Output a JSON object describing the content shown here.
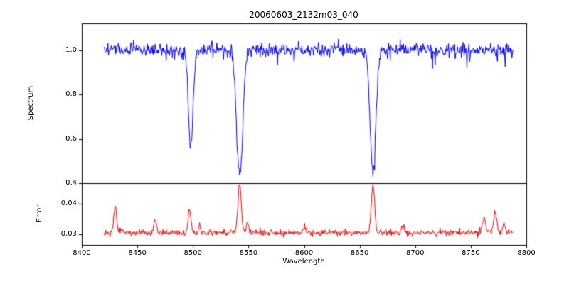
{
  "figure": {
    "title": "20060603_2132m03_040",
    "xlabel": "Wavelength",
    "background": "#ffffff"
  },
  "chart_data": [
    {
      "type": "line",
      "panel": "spectrum",
      "title": "20060603_2132m03_040",
      "ylabel": "Spectrum",
      "line_color": "#0000ff",
      "x_range": [
        8400,
        8800
      ],
      "y_range": [
        0.4,
        1.12
      ],
      "x_tick_values": [
        8400,
        8450,
        8500,
        8550,
        8600,
        8650,
        8700,
        8750,
        8800
      ],
      "x_tick_labels": [
        "8400",
        "8450",
        "8500",
        "8550",
        "8600",
        "8650",
        "8700",
        "8750",
        "8800"
      ],
      "y_tick_values": [
        0.4,
        0.6,
        0.8,
        1.0
      ],
      "y_tick_labels": [
        "0.4",
        "0.6",
        "0.8",
        "1.0"
      ],
      "x_start": 8420,
      "x_end": 8788,
      "sample_step": 0.5,
      "continuum": 1.0,
      "noise_sigma": 0.016,
      "absorption_lines": [
        {
          "center": 8498,
          "min_flux": 0.58,
          "sigma": 2.2
        },
        {
          "center": 8542,
          "min_flux": 0.43,
          "sigma": 2.8
        },
        {
          "center": 8662,
          "min_flux": 0.46,
          "sigma": 2.6
        }
      ]
    },
    {
      "type": "line",
      "panel": "error",
      "ylabel": "Error",
      "line_color": "#ff0000",
      "x_range": [
        8400,
        8800
      ],
      "y_range": [
        0.0265,
        0.0468
      ],
      "y_tick_values": [
        0.03,
        0.04
      ],
      "y_tick_labels": [
        "0.03",
        "0.04"
      ],
      "x_start": 8420,
      "x_end": 8788,
      "sample_step": 0.5,
      "baseline": 0.0305,
      "noise_sigma": 0.0005,
      "peaks": [
        {
          "center": 8430,
          "height": 0.039,
          "sigma": 1.3
        },
        {
          "center": 8466,
          "height": 0.0345,
          "sigma": 1.2
        },
        {
          "center": 8497,
          "height": 0.0375,
          "sigma": 1.3
        },
        {
          "center": 8506,
          "height": 0.033,
          "sigma": 1.0
        },
        {
          "center": 8542,
          "height": 0.0465,
          "sigma": 1.5
        },
        {
          "center": 8549,
          "height": 0.0335,
          "sigma": 1.0
        },
        {
          "center": 8600,
          "height": 0.0325,
          "sigma": 1.0
        },
        {
          "center": 8662,
          "height": 0.0462,
          "sigma": 1.5
        },
        {
          "center": 8689,
          "height": 0.033,
          "sigma": 1.0
        },
        {
          "center": 8762,
          "height": 0.036,
          "sigma": 1.4
        },
        {
          "center": 8772,
          "height": 0.0375,
          "sigma": 1.4
        },
        {
          "center": 8780,
          "height": 0.034,
          "sigma": 1.0
        }
      ]
    }
  ]
}
